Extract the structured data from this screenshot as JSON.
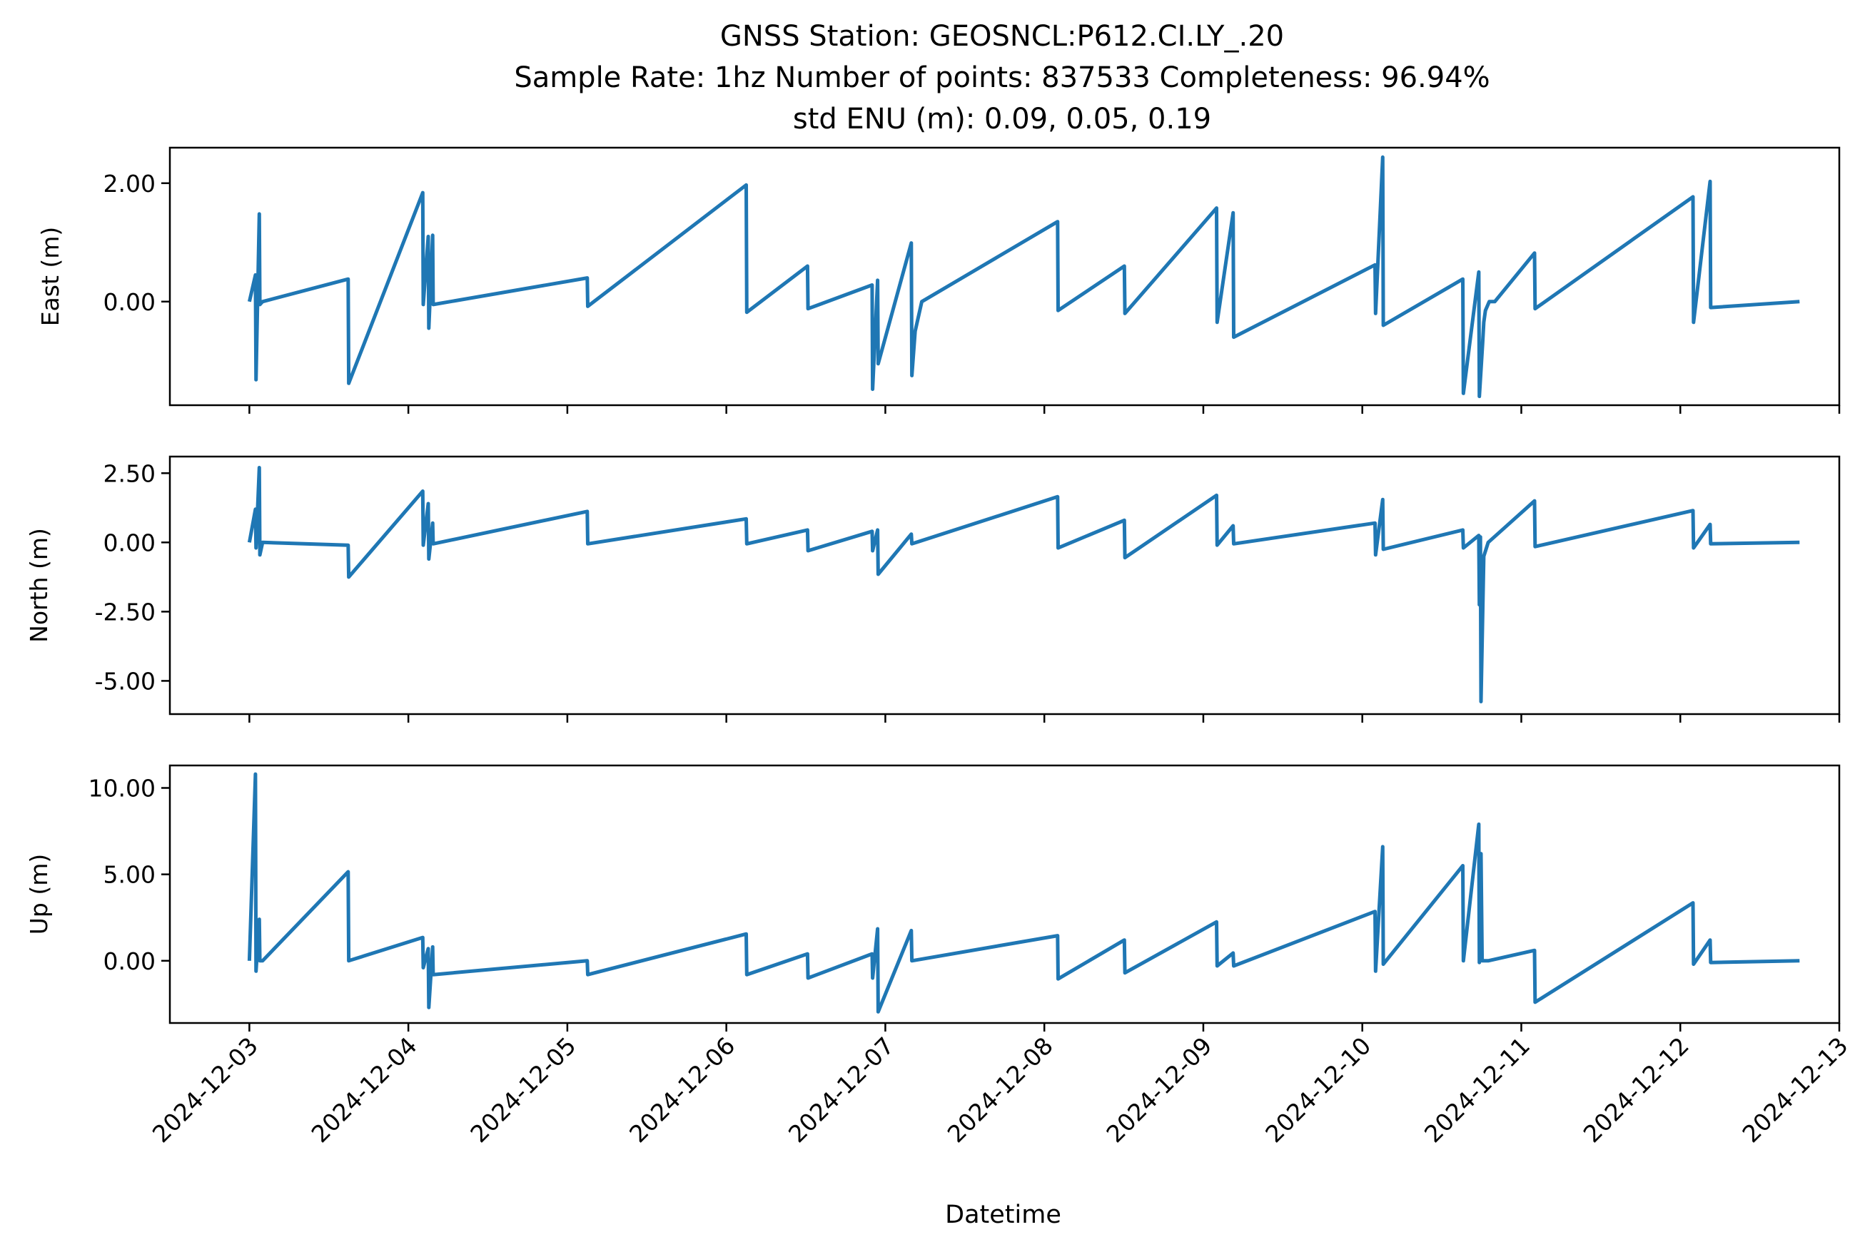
{
  "title_lines": [
    "GNSS Station: GEOSNCL:P612.CI.LY_.20",
    "Sample Rate: 1hz   Number of points: 837533    Completeness:  96.94%",
    "std ENU (m):  0.09, 0.05, 0.19"
  ],
  "colors": {
    "series": "#1f77b4",
    "axis": "#000000",
    "background": "#ffffff"
  },
  "chart_data": [
    {
      "type": "line",
      "ylabel": "East (m)",
      "xlabel": "",
      "xlim": [
        "2024-12-02T12:00",
        "2024-12-13T00:00"
      ],
      "ylim": [
        -1.75,
        2.6
      ],
      "yticks": [
        0,
        2
      ],
      "ytick_labels": [
        "0.00",
        "2.00"
      ],
      "series": [
        {
          "x": [
            "2024-12-03T00:00",
            "2024-12-03T00:55",
            "2024-12-03T01:00",
            "2024-12-03T01:30",
            "2024-12-03T01:35",
            "2024-12-03T02:00",
            "2024-12-03T14:55",
            "2024-12-03T15:00",
            "2024-12-04T02:10",
            "2024-12-04T02:15",
            "2024-12-04T03:00",
            "2024-12-04T03:05",
            "2024-12-04T03:40",
            "2024-12-04T03:45",
            "2024-12-05T03:00",
            "2024-12-05T03:05",
            "2024-12-06T03:00",
            "2024-12-06T03:05",
            "2024-12-06T12:15",
            "2024-12-06T12:20",
            "2024-12-06T22:00",
            "2024-12-06T22:05",
            "2024-12-06T22:50",
            "2024-12-06T22:55",
            "2024-12-07T03:55",
            "2024-12-07T04:00",
            "2024-12-07T04:30",
            "2024-12-07T05:30",
            "2024-12-08T02:00",
            "2024-12-08T02:05",
            "2024-12-08T12:05",
            "2024-12-08T12:10",
            "2024-12-09T02:00",
            "2024-12-09T02:05",
            "2024-12-09T04:30",
            "2024-12-09T04:35",
            "2024-12-10T01:55",
            "2024-12-10T02:00",
            "2024-12-10T03:05",
            "2024-12-10T03:10",
            "2024-12-10T15:10",
            "2024-12-10T15:15",
            "2024-12-10T17:35",
            "2024-12-10T17:40",
            "2024-12-10T18:10",
            "2024-12-10T18:20",
            "2024-12-10T18:35",
            "2024-12-10T19:10",
            "2024-12-10T20:00",
            "2024-12-11T02:00",
            "2024-12-11T02:05",
            "2024-12-12T01:55",
            "2024-12-12T02:00",
            "2024-12-12T04:30",
            "2024-12-12T04:35",
            "2024-12-12T18:00"
          ],
          "values": [
            0.0,
            0.45,
            -1.32,
            1.48,
            -0.05,
            0.0,
            0.38,
            -1.38,
            1.84,
            -0.05,
            1.1,
            -0.45,
            1.12,
            -0.05,
            0.4,
            -0.08,
            1.97,
            -0.18,
            0.6,
            -0.12,
            0.28,
            -1.48,
            0.36,
            -1.05,
            0.99,
            -1.25,
            -0.5,
            0.0,
            1.35,
            -0.15,
            0.6,
            -0.2,
            1.58,
            -0.35,
            1.5,
            -0.6,
            0.62,
            -0.2,
            2.44,
            -0.4,
            0.38,
            -1.55,
            0.5,
            -1.6,
            -0.7,
            -0.35,
            -0.15,
            0.0,
            0.0,
            0.82,
            -0.12,
            1.77,
            -0.35,
            2.03,
            -0.1,
            0.0
          ]
        }
      ]
    },
    {
      "type": "line",
      "ylabel": "North (m)",
      "xlabel": "",
      "xlim": [
        "2024-12-02T12:00",
        "2024-12-13T00:00"
      ],
      "ylim": [
        -6.2,
        3.1
      ],
      "yticks": [
        2.5,
        0,
        -2.5,
        -5
      ],
      "ytick_labels": [
        "2.50",
        "0.00",
        "-2.50",
        "-5.00"
      ],
      "series": [
        {
          "x": [
            "2024-12-03T00:00",
            "2024-12-03T00:55",
            "2024-12-03T01:00",
            "2024-12-03T01:30",
            "2024-12-03T01:35",
            "2024-12-03T02:00",
            "2024-12-03T14:55",
            "2024-12-03T15:00",
            "2024-12-04T02:10",
            "2024-12-04T02:15",
            "2024-12-04T03:00",
            "2024-12-04T03:05",
            "2024-12-04T03:40",
            "2024-12-04T03:45",
            "2024-12-05T03:00",
            "2024-12-05T03:05",
            "2024-12-06T03:00",
            "2024-12-06T03:05",
            "2024-12-06T12:15",
            "2024-12-06T12:20",
            "2024-12-06T22:00",
            "2024-12-06T22:05",
            "2024-12-06T22:50",
            "2024-12-06T22:55",
            "2024-12-07T03:55",
            "2024-12-07T04:00",
            "2024-12-08T02:00",
            "2024-12-08T02:05",
            "2024-12-08T12:05",
            "2024-12-08T12:10",
            "2024-12-09T02:00",
            "2024-12-09T02:05",
            "2024-12-09T04:30",
            "2024-12-09T04:35",
            "2024-12-10T01:55",
            "2024-12-10T02:00",
            "2024-12-10T03:05",
            "2024-12-10T03:10",
            "2024-12-10T15:10",
            "2024-12-10T15:15",
            "2024-12-10T17:35",
            "2024-12-10T17:40",
            "2024-12-10T17:50",
            "2024-12-10T17:55",
            "2024-12-10T18:20",
            "2024-12-10T19:00",
            "2024-12-11T02:00",
            "2024-12-11T02:05",
            "2024-12-12T01:55",
            "2024-12-12T02:00",
            "2024-12-12T04:30",
            "2024-12-12T04:35",
            "2024-12-12T18:00"
          ],
          "values": [
            0.0,
            1.2,
            -0.2,
            2.7,
            -0.45,
            0.0,
            -0.1,
            -1.25,
            1.85,
            -0.1,
            1.4,
            -0.6,
            0.7,
            -0.05,
            1.12,
            -0.05,
            0.85,
            -0.05,
            0.45,
            -0.3,
            0.4,
            -0.3,
            0.45,
            -1.15,
            0.3,
            -0.05,
            1.65,
            -0.2,
            0.8,
            -0.55,
            1.7,
            -0.1,
            0.6,
            -0.05,
            0.7,
            -0.45,
            1.55,
            -0.25,
            0.45,
            -0.2,
            0.25,
            -2.25,
            0.2,
            -5.75,
            -0.5,
            0.0,
            1.5,
            -0.15,
            1.15,
            -0.2,
            0.65,
            -0.05,
            0.0
          ]
        }
      ]
    },
    {
      "type": "line",
      "ylabel": "Up (m)",
      "xlabel": "Datetime",
      "xlim": [
        "2024-12-02T12:00",
        "2024-12-13T00:00"
      ],
      "ylim": [
        -3.6,
        11.3
      ],
      "yticks": [
        10,
        5,
        0
      ],
      "ytick_labels": [
        "10.00",
        "5.00",
        "0.00"
      ],
      "xticks": [
        "2024-12-03",
        "2024-12-04",
        "2024-12-05",
        "2024-12-06",
        "2024-12-07",
        "2024-12-08",
        "2024-12-09",
        "2024-12-10",
        "2024-12-11",
        "2024-12-12",
        "2024-12-13"
      ],
      "xtick_labels": [
        "2024-12-03",
        "2024-12-04",
        "2024-12-05",
        "2024-12-06",
        "2024-12-07",
        "2024-12-08",
        "2024-12-09",
        "2024-12-10",
        "2024-12-11",
        "2024-12-12",
        "2024-12-13"
      ],
      "series": [
        {
          "x": [
            "2024-12-03T00:00",
            "2024-12-03T00:55",
            "2024-12-03T01:00",
            "2024-12-03T01:30",
            "2024-12-03T01:35",
            "2024-12-03T02:00",
            "2024-12-03T14:55",
            "2024-12-03T15:00",
            "2024-12-04T02:10",
            "2024-12-04T02:15",
            "2024-12-04T03:00",
            "2024-12-04T03:05",
            "2024-12-04T03:40",
            "2024-12-04T03:45",
            "2024-12-05T03:00",
            "2024-12-05T03:05",
            "2024-12-06T03:00",
            "2024-12-06T03:05",
            "2024-12-06T12:15",
            "2024-12-06T12:20",
            "2024-12-06T22:00",
            "2024-12-06T22:05",
            "2024-12-06T22:50",
            "2024-12-06T22:55",
            "2024-12-07T03:55",
            "2024-12-07T04:00",
            "2024-12-08T02:00",
            "2024-12-08T02:05",
            "2024-12-08T12:05",
            "2024-12-08T12:10",
            "2024-12-09T02:00",
            "2024-12-09T02:05",
            "2024-12-09T04:30",
            "2024-12-09T04:35",
            "2024-12-10T01:55",
            "2024-12-10T02:00",
            "2024-12-10T03:05",
            "2024-12-10T03:10",
            "2024-12-10T15:10",
            "2024-12-10T15:15",
            "2024-12-10T17:35",
            "2024-12-10T17:40",
            "2024-12-10T17:55",
            "2024-12-10T18:05",
            "2024-12-10T19:00",
            "2024-12-11T02:00",
            "2024-12-11T02:05",
            "2024-12-12T01:55",
            "2024-12-12T02:00",
            "2024-12-12T04:30",
            "2024-12-12T04:35",
            "2024-12-12T18:00"
          ],
          "values": [
            0.0,
            10.8,
            -0.6,
            2.4,
            0.0,
            0.0,
            5.15,
            0.0,
            1.35,
            -0.4,
            0.7,
            -2.7,
            0.8,
            -0.8,
            0.0,
            -0.8,
            1.55,
            -0.8,
            0.4,
            -1.0,
            0.4,
            -1.0,
            1.85,
            -2.95,
            1.75,
            0.0,
            1.45,
            -1.05,
            1.2,
            -0.7,
            2.25,
            -0.3,
            0.45,
            -0.3,
            2.85,
            -0.6,
            6.6,
            -0.2,
            5.5,
            0.0,
            7.9,
            -0.1,
            6.2,
            0.0,
            0.0,
            0.6,
            -2.4,
            3.35,
            -0.2,
            1.2,
            -0.1,
            0.0
          ]
        }
      ]
    }
  ]
}
